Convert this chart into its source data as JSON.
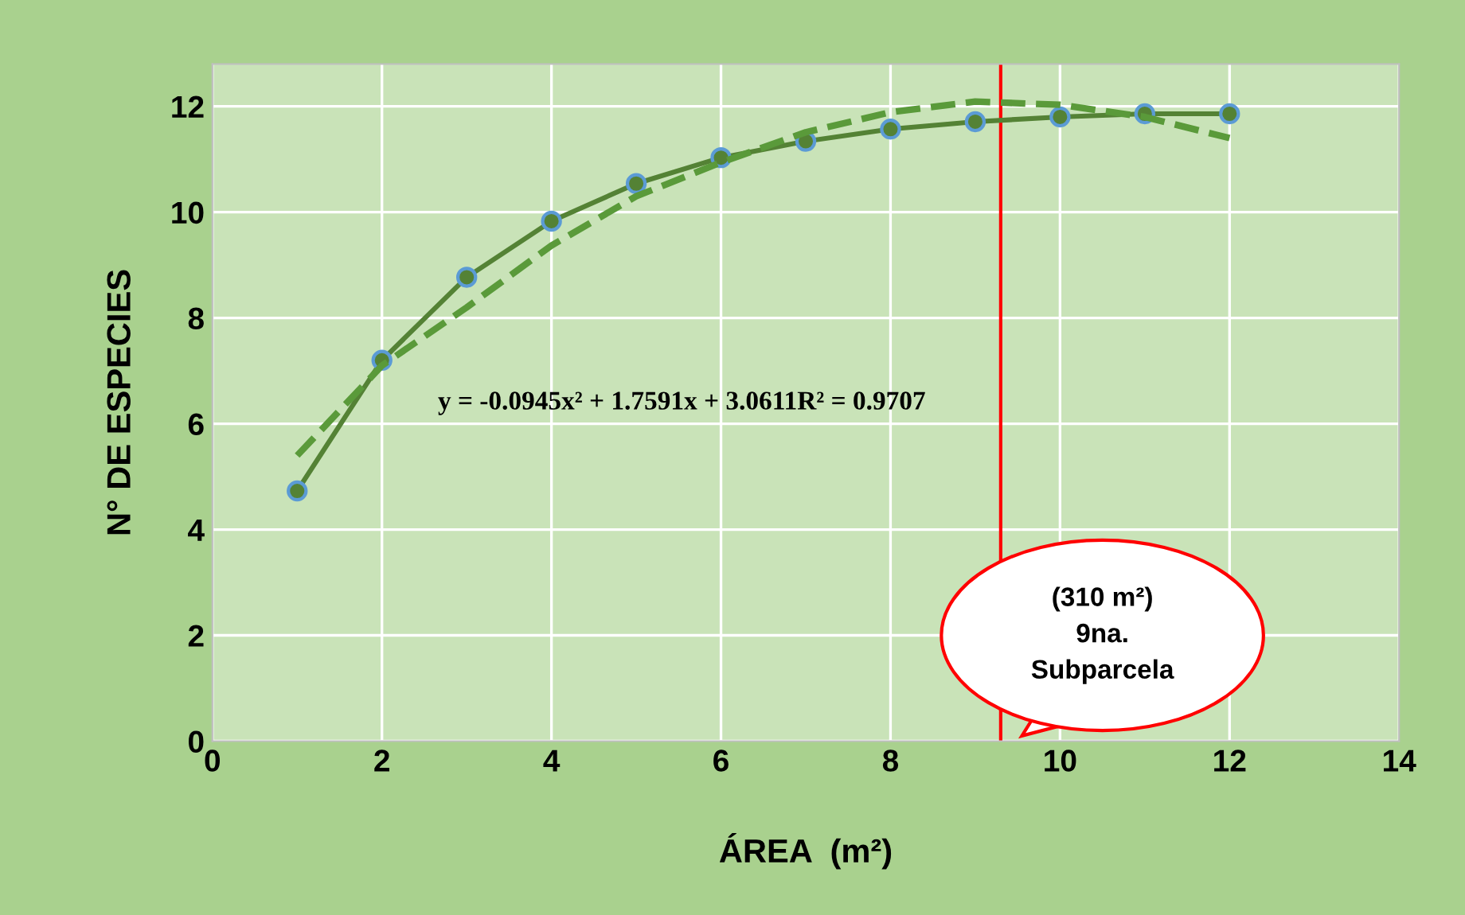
{
  "chart_data": {
    "type": "line",
    "xlabel": "ÁREA  (m²)",
    "ylabel": "N° DE ESPECIES",
    "x": [
      1,
      2,
      3,
      4,
      5,
      6,
      7,
      8,
      9,
      10,
      11,
      12
    ],
    "series": [
      {
        "color": "#548235",
        "marker": "circle",
        "line_style": "solid",
        "values": [
          4.73,
          7.2,
          8.77,
          9.83,
          10.54,
          11.03,
          11.34,
          11.57,
          11.71,
          11.8,
          11.86,
          11.86
        ]
      },
      {
        "color": "#5a9a3a",
        "marker": "none",
        "line_style": "dashed",
        "values": [
          5.4,
          7.1,
          8.2,
          9.37,
          10.3,
          10.94,
          11.51,
          11.89,
          12.09,
          12.03,
          11.8,
          11.4
        ]
      }
    ],
    "xlim": [
      0,
      14
    ],
    "xticks": [
      0,
      2,
      4,
      6,
      8,
      10,
      12,
      14
    ],
    "ylim": [
      0,
      12.8
    ],
    "yticks": [
      0,
      2,
      4,
      6,
      8,
      10,
      12
    ],
    "grid": true,
    "ref_lines": [
      {
        "axis": "x",
        "value": 9.3,
        "color": "#ff0000",
        "line_style": "solid"
      }
    ],
    "annotations": [
      "y = -0.0945x² + 1.7591x + 3.0611R² = 0.9707",
      "(310 m²)\n9na.\nSubparcela"
    ]
  }
}
